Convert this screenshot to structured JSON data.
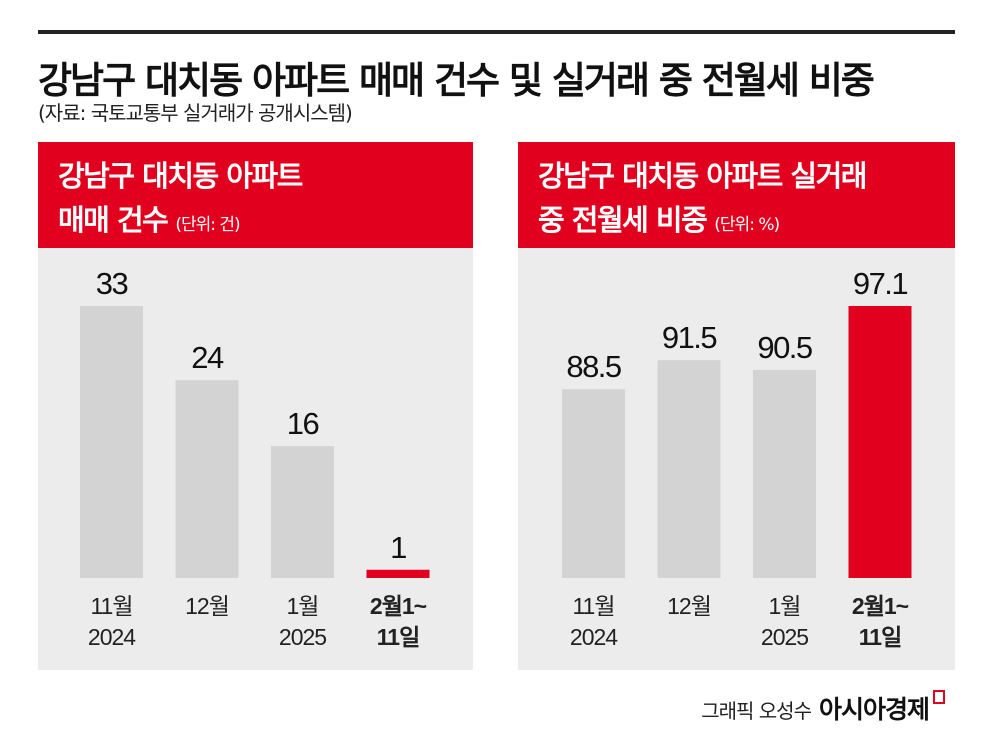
{
  "title": "강남구 대치동 아파트 매매 건수 및 실거래 중 전월세 비중",
  "subtitle": "(자료: 국토교통부 실거래가 공개시스템)",
  "footer": {
    "credit": "그래픽 오성수",
    "brand": "아시아경제"
  },
  "colors": {
    "accent": "#e1001e",
    "bar": "#d3d3d3",
    "panel": "#ececec"
  },
  "chart_data": [
    {
      "type": "bar",
      "title_line1": "강남구 대치동 아파트",
      "title_line2": "매매 건수",
      "unit": "(단위: 건)",
      "categories": [
        [
          "11월",
          "2024"
        ],
        [
          "12월",
          ""
        ],
        [
          "1월",
          "2025"
        ],
        [
          "2월1~",
          "11일"
        ]
      ],
      "values": [
        33,
        24,
        16,
        1
      ],
      "labels": [
        "33",
        "24",
        "16",
        "1"
      ],
      "highlight": 3,
      "ylim": [
        0,
        33
      ]
    },
    {
      "type": "bar",
      "title_line1": "강남구 대치동 아파트 실거래",
      "title_line2": "중 전월세 비중",
      "unit": "(단위: %)",
      "categories": [
        [
          "11월",
          "2024"
        ],
        [
          "12월",
          ""
        ],
        [
          "1월",
          "2025"
        ],
        [
          "2월1~",
          "11일"
        ]
      ],
      "values": [
        88.5,
        91.5,
        90.5,
        97.1
      ],
      "labels": [
        "88.5",
        "91.5",
        "90.5",
        "97.1"
      ],
      "highlight": 3,
      "ylim": [
        69,
        97.1
      ]
    }
  ]
}
